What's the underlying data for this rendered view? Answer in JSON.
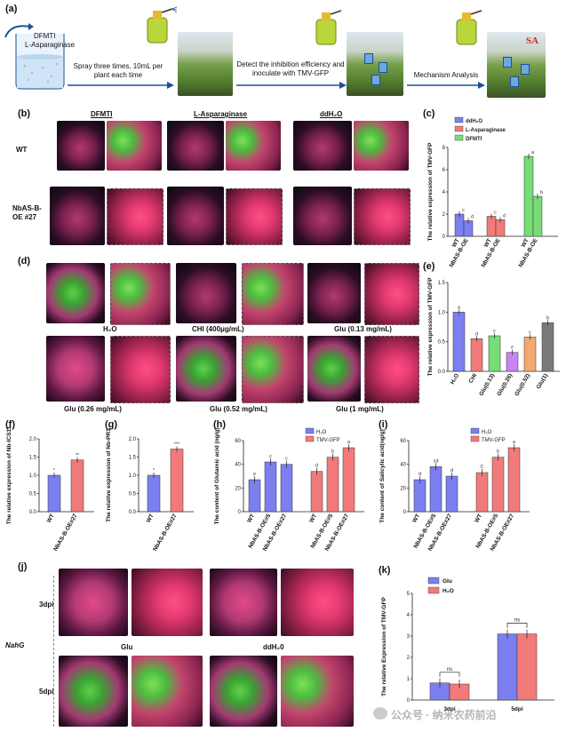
{
  "panel_a": {
    "letter": "(a)",
    "beaker_label_1": "DFMTI",
    "beaker_label_2": "L-Asparaginase",
    "step_1": "Spray three times, 10mL per plant each time",
    "step_2": "Detect the inhibition efficiency and inoculate with TMV-GFP",
    "step_3": "Mechanism Analysis",
    "sa_label": "SA"
  },
  "panel_b": {
    "letter": "(b)",
    "col_headers": [
      "DFMTI",
      "L-Asparaginase",
      "ddH₂O"
    ],
    "row_labels": [
      "WT",
      "NbAS-B-OE #27"
    ]
  },
  "panel_c": {
    "letter": "(c)",
    "chart_data": {
      "type": "bar",
      "ylabel": "The relative expression of TMV-GFP",
      "ylim": [
        0,
        8
      ],
      "yticks": [
        "0",
        "2",
        "4",
        "6",
        "8"
      ],
      "series": [
        {
          "name": "ddH₂O",
          "color": "#7b7ff0",
          "values": [
            2.0,
            1.4
          ],
          "letters": [
            "c",
            "d"
          ]
        },
        {
          "name": "L-Asparaginase",
          "color": "#f27a7a",
          "values": [
            1.8,
            1.5
          ],
          "letters": [
            "c",
            "d"
          ]
        },
        {
          "name": "DFMTI",
          "color": "#77dd77",
          "values": [
            7.2,
            3.6
          ],
          "letters": [
            "a",
            "b"
          ]
        }
      ],
      "categories": [
        "WT",
        "NbAS-B-OE"
      ]
    }
  },
  "panel_d": {
    "letter": "(d)",
    "labels": [
      "H₂O",
      "CHI (400μg/mL)",
      "Glu (0.13 mg/mL)",
      "Glu (0.26 mg/mL)",
      "Glu (0.52 mg/mL)",
      "Glu (1 mg/mL)"
    ]
  },
  "panel_e": {
    "letter": "(e)",
    "chart_data": {
      "type": "bar",
      "ylabel": "The relative expression of TMV-GFP",
      "ylim": [
        0,
        1.5
      ],
      "yticks": [
        "0.0",
        "0.5",
        "1.0",
        "1.5"
      ],
      "categories": [
        "H₂O",
        "CHI",
        "Glu(0.13)",
        "Glu(0.26)",
        "Glu(0.52)",
        "Glu(1)"
      ],
      "values": [
        1.0,
        0.55,
        0.6,
        0.32,
        0.58,
        0.82
      ],
      "letters": [
        "a",
        "d",
        "c",
        "e",
        "c",
        "b"
      ],
      "colors": [
        "#7b7ff0",
        "#f27a7a",
        "#77dd77",
        "#c883f5",
        "#f5a86d",
        "#7a7a7a"
      ]
    }
  },
  "panel_f": {
    "letter": "(f)",
    "chart_data": {
      "type": "bar",
      "ylabel": "The relative expression of Nb-ICS11",
      "ylim": [
        0,
        2.0
      ],
      "yticks": [
        "0.0",
        "0.5",
        "1.0",
        "1.5",
        "2.0"
      ],
      "categories": [
        "WT",
        "NbAS-B-OE#27"
      ],
      "values": [
        1.0,
        1.42
      ],
      "letters": [
        "*",
        "**"
      ]
    }
  },
  "panel_g": {
    "letter": "(g)",
    "chart_data": {
      "type": "bar",
      "ylabel": "The relative expression of Nb-PR1",
      "ylim": [
        0,
        2.0
      ],
      "yticks": [
        "0.0",
        "0.5",
        "1.0",
        "1.5",
        "2.0"
      ],
      "categories": [
        "WT",
        "NbAS-B-OE#27"
      ],
      "values": [
        1.0,
        1.72
      ],
      "letters": [
        "*",
        "***"
      ]
    }
  },
  "panel_h": {
    "letter": "(h)",
    "chart_data": {
      "type": "bar",
      "ylabel": "The content of Glutamic acid (ng/g)",
      "ylim": [
        0,
        60
      ],
      "yticks": [
        "0",
        "20",
        "40",
        "60"
      ],
      "categories": [
        "WT",
        "NbAS-B-OE#5",
        "NbAS-B-OE#27"
      ],
      "series": [
        {
          "name": "H₂O",
          "color": "#7b7ff0",
          "values": [
            27,
            42,
            40
          ],
          "letters": [
            "e",
            "c",
            "c"
          ]
        },
        {
          "name": "TMV-GFP",
          "color": "#f27a7a",
          "values": [
            34,
            46,
            54
          ],
          "letters": [
            "d",
            "b",
            "a"
          ]
        }
      ]
    }
  },
  "panel_i": {
    "letter": "(i)",
    "chart_data": {
      "type": "bar",
      "ylabel": "The content of Salicylic acid(ng/g)",
      "ylim": [
        0,
        60
      ],
      "yticks": [
        "0",
        "20",
        "40",
        "60"
      ],
      "categories": [
        "WT",
        "NbAS-B-OE#5",
        "NbAS-B-OE#27"
      ],
      "series": [
        {
          "name": "H₂O",
          "color": "#7b7ff0",
          "values": [
            27,
            38,
            30
          ],
          "letters": [
            "d",
            "cd",
            "d"
          ]
        },
        {
          "name": "TMV-GFP",
          "color": "#f27a7a",
          "values": [
            33,
            46,
            54
          ],
          "letters": [
            "C",
            "b",
            "a"
          ]
        }
      ]
    }
  },
  "panel_j": {
    "letter": "(j)",
    "row_labels": [
      "3dpi",
      "5dpi"
    ],
    "col_labels": [
      "Glu",
      "ddH₂0"
    ],
    "side_label": "NahG"
  },
  "panel_k": {
    "letter": "(k)",
    "chart_data": {
      "type": "bar",
      "ylabel": "The relative Expression of TMV-GFP",
      "ylim": [
        0,
        5
      ],
      "yticks": [
        "0",
        "1",
        "2",
        "3",
        "4",
        "5"
      ],
      "categories": [
        "3dpi",
        "5dpi"
      ],
      "series": [
        {
          "name": "Glu",
          "color": "#7b7ff0",
          "values": [
            0.8,
            3.1
          ]
        },
        {
          "name": "H₂O",
          "color": "#f27a7a",
          "values": [
            0.75,
            3.1
          ]
        }
      ],
      "significance": [
        "ns",
        "ns"
      ]
    }
  },
  "watermark": "公众号 · 纳米农药前沿"
}
